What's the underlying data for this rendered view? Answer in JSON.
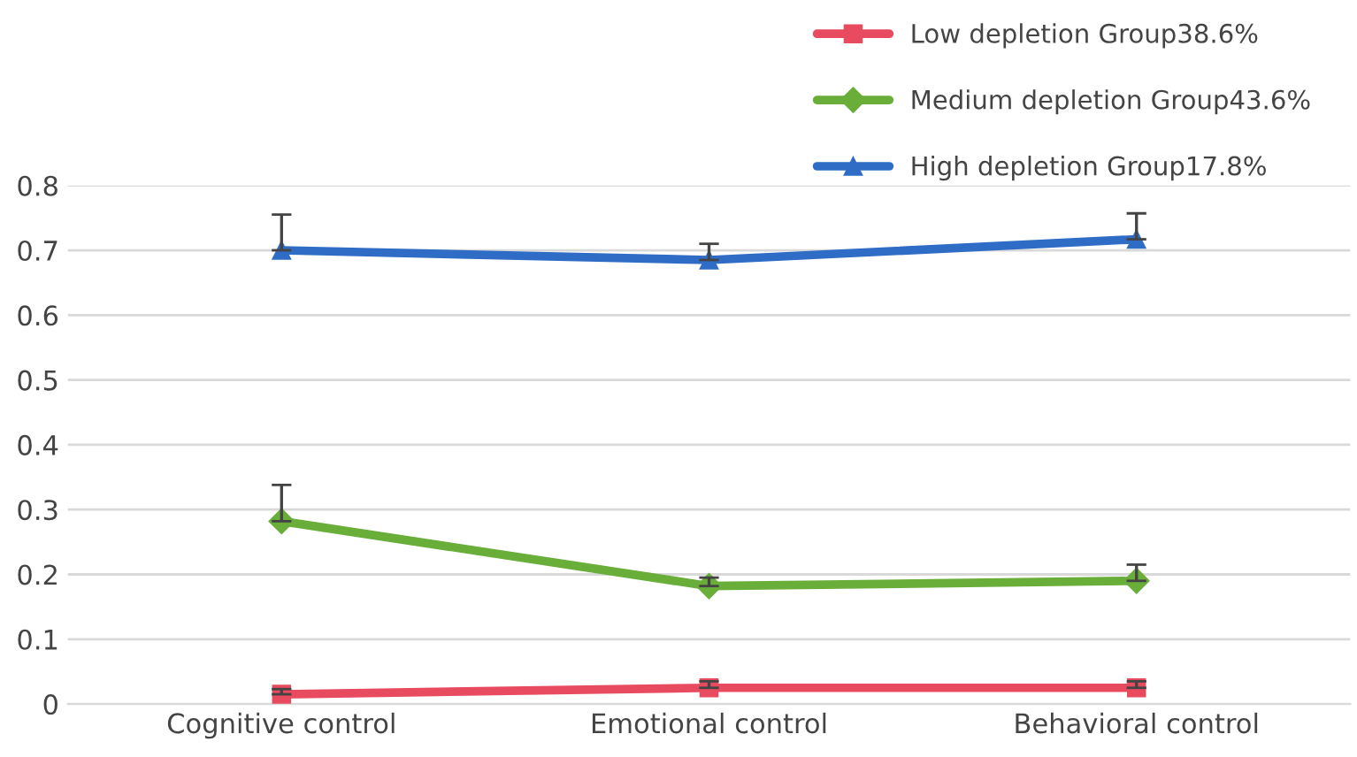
{
  "chart_data": {
    "type": "line",
    "categories": [
      "Cognitive control",
      "Emotional control",
      "Behavioral control"
    ],
    "series": [
      {
        "name": "Low depletion Group38.6%",
        "color": "#e84a5f",
        "marker": "square",
        "values": [
          0.015,
          0.025,
          0.025
        ],
        "errors": [
          [
            0.015,
            0.023
          ],
          [
            0.025,
            0.035
          ],
          [
            0.025,
            0.035
          ]
        ]
      },
      {
        "name": "Medium depletion Group43.6%",
        "color": "#6aae3a",
        "marker": "diamond",
        "values": [
          0.282,
          0.182,
          0.19
        ],
        "errors": [
          [
            0.282,
            0.338
          ],
          [
            0.182,
            0.195
          ],
          [
            0.19,
            0.215
          ]
        ]
      },
      {
        "name": "High depletion Group17.8%",
        "color": "#2f6cc6",
        "marker": "triangle",
        "values": [
          0.7,
          0.685,
          0.717
        ],
        "errors": [
          [
            0.7,
            0.755
          ],
          [
            0.685,
            0.71
          ],
          [
            0.717,
            0.757
          ]
        ]
      }
    ],
    "ylim": [
      0,
      0.8
    ],
    "yticks": [
      0,
      0.1,
      0.2,
      0.3,
      0.4,
      0.5,
      0.6,
      0.7,
      0.8
    ],
    "grid": "y",
    "legend": "top right",
    "line_style": "solid"
  }
}
